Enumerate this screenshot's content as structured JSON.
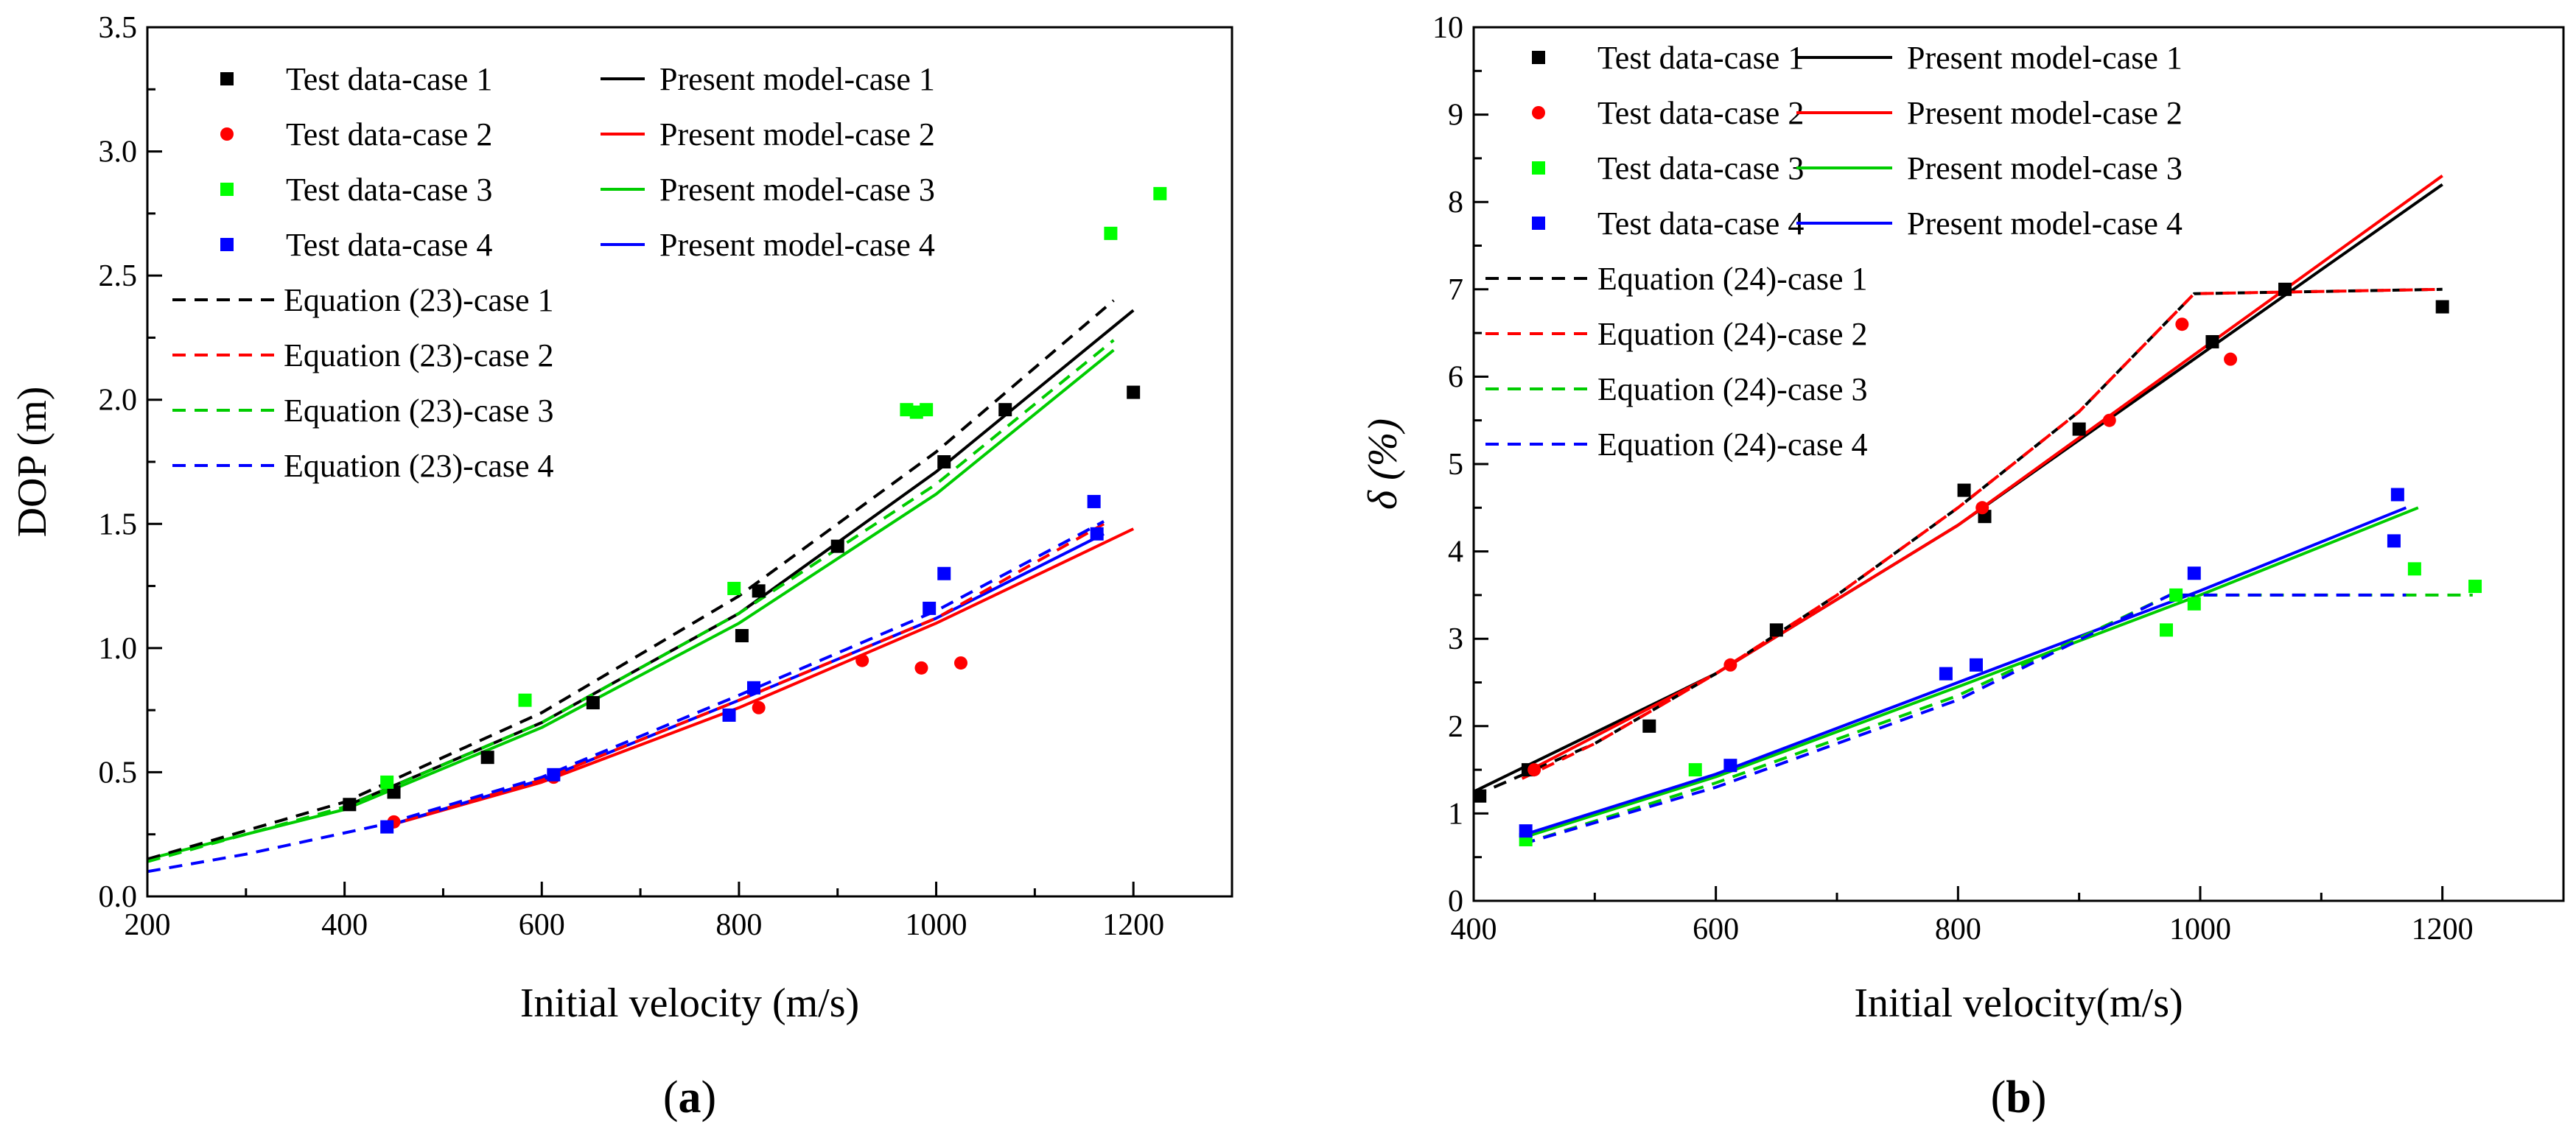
{
  "chart_data": [
    {
      "panel_label": "a",
      "type": "line+scatter",
      "xlabel": "Initial velocity (m/s)",
      "ylabel": "DOP (m)",
      "xlim": [
        200,
        1300
      ],
      "ylim": [
        0,
        3.5
      ],
      "xticks": [
        200,
        400,
        600,
        800,
        1000,
        1200
      ],
      "yticks": [
        0.0,
        0.5,
        1.0,
        1.5,
        2.0,
        2.5,
        3.0,
        3.5
      ],
      "tick_decimals_x": 0,
      "tick_decimals_y": 1,
      "legend_position": "top-left",
      "legend_marker_entries": [
        {
          "label": "Test data-case 1",
          "color": "#000000",
          "shape": "square"
        },
        {
          "label": "Test data-case 2",
          "color": "#ff0000",
          "shape": "circle"
        },
        {
          "label": "Test data-case 3",
          "color": "#00ff00",
          "shape": "square"
        },
        {
          "label": "Test data-case 4",
          "color": "#0000ff",
          "shape": "square"
        }
      ],
      "legend_solid_entries": [
        {
          "label": "Present model-case 1",
          "color": "#000000"
        },
        {
          "label": "Present model-case 2",
          "color": "#ff0000"
        },
        {
          "label": "Present model-case 3",
          "color": "#00cc00"
        },
        {
          "label": "Present model-case 4",
          "color": "#0000ff"
        }
      ],
      "legend_dashed_entries": [
        {
          "label": "Equation (23)-case 1",
          "color": "#000000"
        },
        {
          "label": "Equation (23)-case 2",
          "color": "#ff0000"
        },
        {
          "label": "Equation (23)-case 3",
          "color": "#00cc00"
        },
        {
          "label": "Equation (23)-case 4",
          "color": "#0000ff"
        }
      ],
      "scatter_series": [
        {
          "name": "Test data-case 1",
          "color": "#000000",
          "shape": "square",
          "points": [
            [
              405,
              0.37
            ],
            [
              450,
              0.42
            ],
            [
              545,
              0.56
            ],
            [
              652,
              0.78
            ],
            [
              803,
              1.05
            ],
            [
              820,
              1.23
            ],
            [
              900,
              1.41
            ],
            [
              1008,
              1.75
            ],
            [
              1070,
              1.96
            ],
            [
              1200,
              2.03
            ]
          ]
        },
        {
          "name": "Test data-case 2",
          "color": "#ff0000",
          "shape": "circle",
          "points": [
            [
              450,
              0.3
            ],
            [
              612,
              0.48
            ],
            [
              820,
              0.76
            ],
            [
              925,
              0.95
            ],
            [
              985,
              0.92
            ],
            [
              1025,
              0.94
            ]
          ]
        },
        {
          "name": "Test data-case 3",
          "color": "#00ff00",
          "shape": "square",
          "points": [
            [
              443,
              0.46
            ],
            [
              583,
              0.79
            ],
            [
              795,
              1.24
            ],
            [
              970,
              1.96
            ],
            [
              980,
              1.95
            ],
            [
              990,
              1.96
            ],
            [
              1177,
              2.67
            ],
            [
              1227,
              2.83
            ]
          ]
        },
        {
          "name": "Test data-case 4",
          "color": "#0000ff",
          "shape": "square",
          "points": [
            [
              443,
              0.28
            ],
            [
              612,
              0.49
            ],
            [
              790,
              0.73
            ],
            [
              815,
              0.84
            ],
            [
              993,
              1.16
            ],
            [
              1008,
              1.3
            ],
            [
              1160,
              1.59
            ],
            [
              1163,
              1.46
            ]
          ]
        }
      ],
      "line_series": [
        {
          "name": "Present model-case 1",
          "color": "#000000",
          "dash": false,
          "points": [
            [
              405,
              0.37
            ],
            [
              600,
              0.7
            ],
            [
              800,
              1.14
            ],
            [
              1000,
              1.71
            ],
            [
              1200,
              2.36
            ]
          ]
        },
        {
          "name": "Present model-case 2",
          "color": "#ff0000",
          "dash": false,
          "points": [
            [
              440,
              0.28
            ],
            [
              600,
              0.46
            ],
            [
              800,
              0.76
            ],
            [
              1000,
              1.1
            ],
            [
              1200,
              1.48
            ]
          ]
        },
        {
          "name": "Present model-case 3",
          "color": "#00cc00",
          "dash": false,
          "points": [
            [
              200,
              0.15
            ],
            [
              400,
              0.35
            ],
            [
              600,
              0.68
            ],
            [
              800,
              1.1
            ],
            [
              1000,
              1.62
            ],
            [
              1180,
              2.2
            ]
          ]
        },
        {
          "name": "Present model-case 4",
          "color": "#0000ff",
          "dash": false,
          "points": [
            [
              440,
              0.28
            ],
            [
              600,
              0.47
            ],
            [
              800,
              0.79
            ],
            [
              1000,
              1.12
            ],
            [
              1170,
              1.46
            ]
          ]
        },
        {
          "name": "Equation (23)-case 1",
          "color": "#000000",
          "dash": true,
          "points": [
            [
              200,
              0.15
            ],
            [
              400,
              0.38
            ],
            [
              600,
              0.74
            ],
            [
              800,
              1.21
            ],
            [
              1000,
              1.79
            ],
            [
              1180,
              2.4
            ]
          ]
        },
        {
          "name": "Equation (23)-case 2",
          "color": "#ff0000",
          "dash": true,
          "points": [
            [
              440,
              0.28
            ],
            [
              600,
              0.47
            ],
            [
              800,
              0.79
            ],
            [
              1000,
              1.12
            ],
            [
              1170,
              1.5
            ]
          ]
        },
        {
          "name": "Equation (23)-case 3",
          "color": "#00cc00",
          "dash": true,
          "points": [
            [
              200,
              0.14
            ],
            [
              400,
              0.36
            ],
            [
              600,
              0.7
            ],
            [
              800,
              1.14
            ],
            [
              1000,
              1.66
            ],
            [
              1180,
              2.24
            ]
          ]
        },
        {
          "name": "Equation (23)-case 4",
          "color": "#0000ff",
          "dash": true,
          "points": [
            [
              200,
              0.1
            ],
            [
              300,
              0.17
            ],
            [
              440,
              0.29
            ],
            [
              600,
              0.48
            ],
            [
              800,
              0.81
            ],
            [
              1000,
              1.15
            ],
            [
              1170,
              1.51
            ]
          ]
        }
      ]
    },
    {
      "panel_label": "b",
      "type": "line+scatter",
      "xlabel": "Initial velocity(m/s)",
      "ylabel": "δ (%)",
      "xlim": [
        400,
        1300
      ],
      "ylim": [
        0,
        10
      ],
      "xticks": [
        400,
        600,
        800,
        1000,
        1200
      ],
      "yticks": [
        0,
        1,
        2,
        3,
        4,
        5,
        6,
        7,
        8,
        9,
        10
      ],
      "tick_decimals_x": 0,
      "tick_decimals_y": 0,
      "legend_position": "top-left",
      "legend_marker_entries": [
        {
          "label": "Test data-case 1",
          "color": "#000000",
          "shape": "square"
        },
        {
          "label": "Test data-case 2",
          "color": "#ff0000",
          "shape": "circle"
        },
        {
          "label": "Test data-case 3",
          "color": "#00ff00",
          "shape": "square"
        },
        {
          "label": "Test data-case 4",
          "color": "#0000ff",
          "shape": "square"
        }
      ],
      "legend_solid_entries": [
        {
          "label": "Present model-case 1",
          "color": "#000000"
        },
        {
          "label": "Present model-case 2",
          "color": "#ff0000"
        },
        {
          "label": "Present model-case 3",
          "color": "#00cc00"
        },
        {
          "label": "Present model-case 4",
          "color": "#0000ff"
        }
      ],
      "legend_dashed_entries": [
        {
          "label": "Equation (24)-case 1",
          "color": "#000000"
        },
        {
          "label": "Equation (24)-case 2",
          "color": "#ff0000"
        },
        {
          "label": "Equation (24)-case 3",
          "color": "#00cc00"
        },
        {
          "label": "Equation (24)-case 4",
          "color": "#0000ff"
        }
      ],
      "scatter_series": [
        {
          "name": "Test data-case 1",
          "color": "#000000",
          "shape": "square",
          "points": [
            [
              405,
              1.2
            ],
            [
              445,
              1.5
            ],
            [
              545,
              2.0
            ],
            [
              650,
              3.1
            ],
            [
              805,
              4.7
            ],
            [
              822,
              4.4
            ],
            [
              900,
              5.4
            ],
            [
              1010,
              6.4
            ],
            [
              1070,
              7.0
            ],
            [
              1200,
              6.8
            ]
          ]
        },
        {
          "name": "Test data-case 2",
          "color": "#ff0000",
          "shape": "circle",
          "points": [
            [
              450,
              1.5
            ],
            [
              612,
              2.7
            ],
            [
              820,
              4.5
            ],
            [
              925,
              5.5
            ],
            [
              985,
              6.6
            ],
            [
              1025,
              6.2
            ]
          ]
        },
        {
          "name": "Test data-case 3",
          "color": "#00ff00",
          "shape": "square",
          "points": [
            [
              443,
              0.7
            ],
            [
              583,
              1.5
            ],
            [
              972,
              3.1
            ],
            [
              980,
              3.5
            ],
            [
              995,
              3.4
            ],
            [
              1177,
              3.8
            ],
            [
              1227,
              3.6
            ]
          ]
        },
        {
          "name": "Test data-case 4",
          "color": "#0000ff",
          "shape": "square",
          "points": [
            [
              443,
              0.8
            ],
            [
              612,
              1.55
            ],
            [
              790,
              2.6
            ],
            [
              815,
              2.7
            ],
            [
              995,
              3.75
            ],
            [
              1160,
              4.12
            ],
            [
              1163,
              4.65
            ]
          ]
        }
      ],
      "line_series": [
        {
          "name": "Present model-case 1",
          "color": "#000000",
          "dash": false,
          "points": [
            [
              400,
              1.25
            ],
            [
              600,
              2.6
            ],
            [
              800,
              4.3
            ],
            [
              1000,
              6.25
            ],
            [
              1200,
              8.2
            ]
          ]
        },
        {
          "name": "Present model-case 2",
          "color": "#ff0000",
          "dash": false,
          "points": [
            [
              440,
              1.45
            ],
            [
              600,
              2.6
            ],
            [
              800,
              4.3
            ],
            [
              1000,
              6.3
            ],
            [
              1200,
              8.3
            ]
          ]
        },
        {
          "name": "Present model-case 3",
          "color": "#00cc00",
          "dash": false,
          "points": [
            [
              440,
              0.72
            ],
            [
              600,
              1.42
            ],
            [
              800,
              2.45
            ],
            [
              1000,
              3.5
            ],
            [
              1180,
              4.5
            ]
          ]
        },
        {
          "name": "Present model-case 4",
          "color": "#0000ff",
          "dash": false,
          "points": [
            [
              440,
              0.75
            ],
            [
              600,
              1.45
            ],
            [
              800,
              2.5
            ],
            [
              1000,
              3.55
            ],
            [
              1170,
              4.5
            ]
          ]
        },
        {
          "name": "Equation (24)-case 1",
          "color": "#000000",
          "dash": true,
          "points": [
            [
              400,
              1.2
            ],
            [
              500,
              1.8
            ],
            [
              600,
              2.6
            ],
            [
              700,
              3.5
            ],
            [
              800,
              4.5
            ],
            [
              900,
              5.6
            ],
            [
              995,
              6.95
            ],
            [
              1200,
              7.0
            ]
          ]
        },
        {
          "name": "Equation (24)-case 2",
          "color": "#ff0000",
          "dash": true,
          "points": [
            [
              440,
              1.4
            ],
            [
              500,
              1.8
            ],
            [
              600,
              2.6
            ],
            [
              700,
              3.5
            ],
            [
              800,
              4.5
            ],
            [
              900,
              5.6
            ],
            [
              995,
              6.95
            ],
            [
              1200,
              7.0
            ]
          ]
        },
        {
          "name": "Equation (24)-case 3",
          "color": "#00cc00",
          "dash": true,
          "points": [
            [
              440,
              0.65
            ],
            [
              600,
              1.35
            ],
            [
              800,
              2.35
            ],
            [
              975,
              3.5
            ],
            [
              1225,
              3.5
            ]
          ]
        },
        {
          "name": "Equation (24)-case 4",
          "color": "#0000ff",
          "dash": true,
          "points": [
            [
              440,
              0.65
            ],
            [
              600,
              1.3
            ],
            [
              800,
              2.3
            ],
            [
              975,
              3.5
            ],
            [
              1170,
              3.5
            ]
          ]
        }
      ]
    }
  ]
}
